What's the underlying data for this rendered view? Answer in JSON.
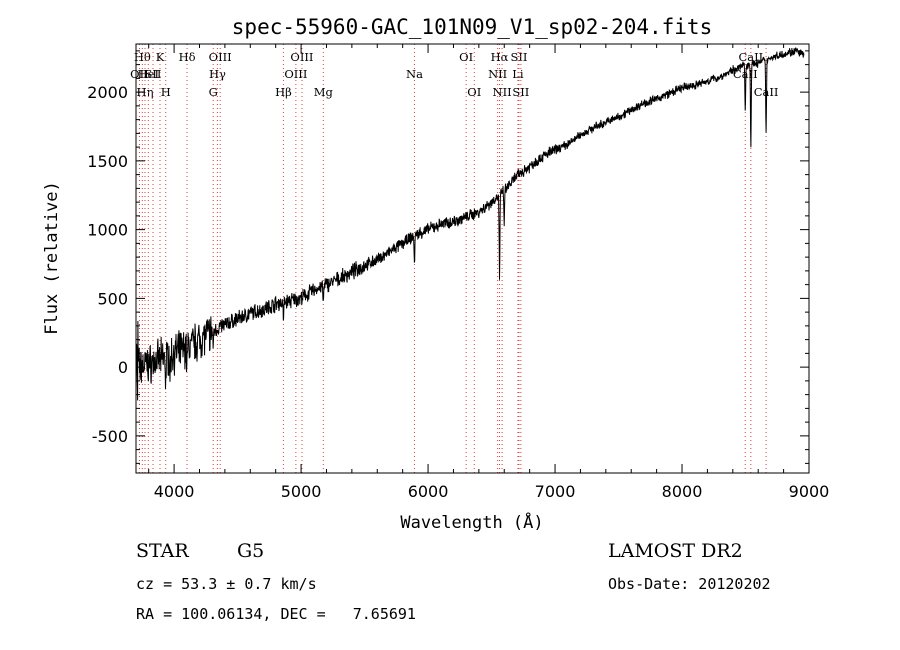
{
  "chart_data": {
    "type": "line",
    "title": "spec-55960-GAC_101N09_V1_sp02-204.fits",
    "xlabel": "Wavelength (Å)",
    "ylabel": "Flux (relative)",
    "xlim": [
      3700,
      9000
    ],
    "ylim": [
      -770,
      2350
    ],
    "x_ticks": [
      4000,
      5000,
      6000,
      7000,
      8000,
      9000
    ],
    "y_ticks": [
      -500,
      0,
      500,
      1000,
      1500,
      2000
    ],
    "anchors": [
      [
        3700,
        0
      ],
      [
        3800,
        20
      ],
      [
        3900,
        60
      ],
      [
        4000,
        100
      ],
      [
        4100,
        140
      ],
      [
        4200,
        200
      ],
      [
        4300,
        260
      ],
      [
        4400,
        310
      ],
      [
        4500,
        350
      ],
      [
        4600,
        390
      ],
      [
        4700,
        420
      ],
      [
        4800,
        460
      ],
      [
        4900,
        480
      ],
      [
        5000,
        500
      ],
      [
        5100,
        560
      ],
      [
        5200,
        600
      ],
      [
        5300,
        640
      ],
      [
        5400,
        690
      ],
      [
        5500,
        740
      ],
      [
        5600,
        780
      ],
      [
        5700,
        840
      ],
      [
        5800,
        900
      ],
      [
        5900,
        960
      ],
      [
        6000,
        1000
      ],
      [
        6100,
        1040
      ],
      [
        6200,
        1060
      ],
      [
        6300,
        1090
      ],
      [
        6400,
        1130
      ],
      [
        6500,
        1200
      ],
      [
        6600,
        1280
      ],
      [
        6700,
        1390
      ],
      [
        6800,
        1460
      ],
      [
        6900,
        1530
      ],
      [
        7000,
        1580
      ],
      [
        7100,
        1620
      ],
      [
        7200,
        1690
      ],
      [
        7300,
        1740
      ],
      [
        7400,
        1780
      ],
      [
        7500,
        1820
      ],
      [
        7600,
        1870
      ],
      [
        7700,
        1920
      ],
      [
        7800,
        1950
      ],
      [
        7900,
        1990
      ],
      [
        8000,
        2030
      ],
      [
        8100,
        2050
      ],
      [
        8200,
        2080
      ],
      [
        8300,
        2110
      ],
      [
        8400,
        2160
      ],
      [
        8500,
        2200
      ],
      [
        8600,
        2210
      ],
      [
        8700,
        2250
      ],
      [
        8800,
        2280
      ],
      [
        8900,
        2300
      ],
      [
        8950,
        2270
      ]
    ],
    "absorption": [
      [
        3934,
        180
      ],
      [
        3969,
        150
      ],
      [
        4101,
        120
      ],
      [
        4308,
        100
      ],
      [
        4861,
        120
      ],
      [
        5175,
        130
      ],
      [
        5893,
        200
      ],
      [
        6563,
        600
      ],
      [
        6600,
        220
      ],
      [
        8498,
        350
      ],
      [
        8542,
        600
      ],
      [
        8662,
        520
      ]
    ],
    "line_markers": [
      {
        "x": 3727,
        "label": "OII",
        "row": 2
      },
      {
        "x": 3750,
        "label": "Hθ",
        "row": 1
      },
      {
        "x": 3771,
        "label": "Hη",
        "row": 3
      },
      {
        "x": 3797,
        "label": "HeI",
        "row": 2
      },
      {
        "x": 3834,
        "label": "SII",
        "row": 2
      },
      {
        "x": 3889,
        "label": "K",
        "row": 1
      },
      {
        "x": 3934,
        "label": "H",
        "row": 3
      },
      {
        "x": 4102,
        "label": "Hδ",
        "row": 1
      },
      {
        "x": 4308,
        "label": "G",
        "row": 3
      },
      {
        "x": 4341,
        "label": "Hγ",
        "row": 2
      },
      {
        "x": 4363,
        "label": "OIII",
        "row": 1
      },
      {
        "x": 4861,
        "label": "Hβ",
        "row": 3
      },
      {
        "x": 4959,
        "label": "OIII",
        "row": 2
      },
      {
        "x": 5007,
        "label": "OIII",
        "row": 1
      },
      {
        "x": 5175,
        "label": "Mg",
        "row": 3
      },
      {
        "x": 5893,
        "label": "Na",
        "row": 2
      },
      {
        "x": 6300,
        "label": "OI",
        "row": 1
      },
      {
        "x": 6364,
        "label": "OI",
        "row": 3
      },
      {
        "x": 6548,
        "label": "NII",
        "row": 2
      },
      {
        "x": 6563,
        "label": "Hα",
        "row": 1
      },
      {
        "x": 6583,
        "label": "NII",
        "row": 3
      },
      {
        "x": 6708,
        "label": "Li",
        "row": 2
      },
      {
        "x": 6716,
        "label": "SII",
        "row": 1
      },
      {
        "x": 6731,
        "label": "SII",
        "row": 3
      },
      {
        "x": 8498,
        "label": "CaII",
        "row": 2
      },
      {
        "x": 8542,
        "label": "CaII",
        "row": 1
      },
      {
        "x": 8662,
        "label": "CaII",
        "row": 3
      }
    ]
  },
  "info": {
    "object_class": "STAR",
    "subclass": "G5",
    "survey": "LAMOST DR2",
    "cz": "cz = 53.3 ± 0.7 km/s",
    "obs_date": "Obs-Date: 20120202",
    "radec": "RA = 100.06134, DEC =   7.65691"
  }
}
